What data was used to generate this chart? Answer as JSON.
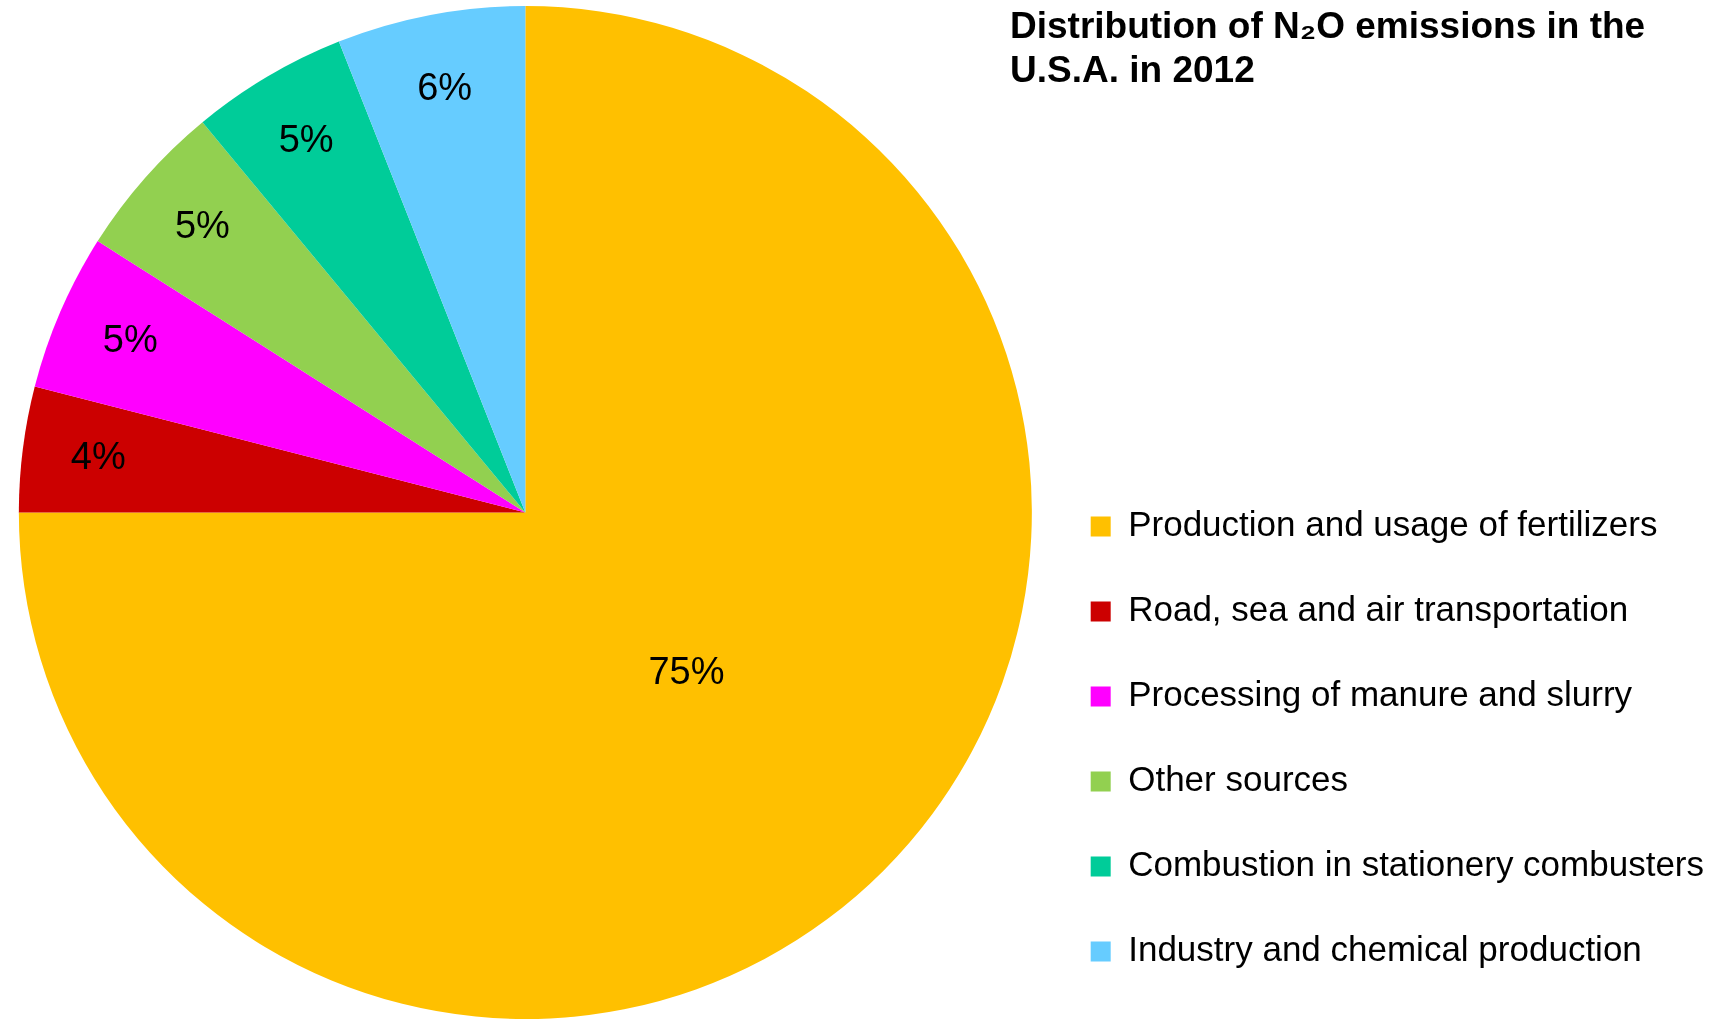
{
  "chart_data": {
    "type": "pie",
    "title": "Distribution of N₂O emissions in the U.S.A. in 2012",
    "categories": [
      "Production and usage of fertilizers",
      "Road, sea and air transportation",
      "Processing of manure and slurry",
      "Other sources",
      "Combustion in stationery combusters",
      "Industry and chemical production"
    ],
    "values": [
      75,
      4,
      5,
      5,
      5,
      6
    ],
    "colors": [
      "#ffc000",
      "#cc0000",
      "#ff00ff",
      "#92d050",
      "#00cc99",
      "#66ccff"
    ],
    "value_labels": [
      "75%",
      "4%",
      "5%",
      "5%",
      "5%",
      "6%"
    ],
    "legend": "bottom right"
  }
}
